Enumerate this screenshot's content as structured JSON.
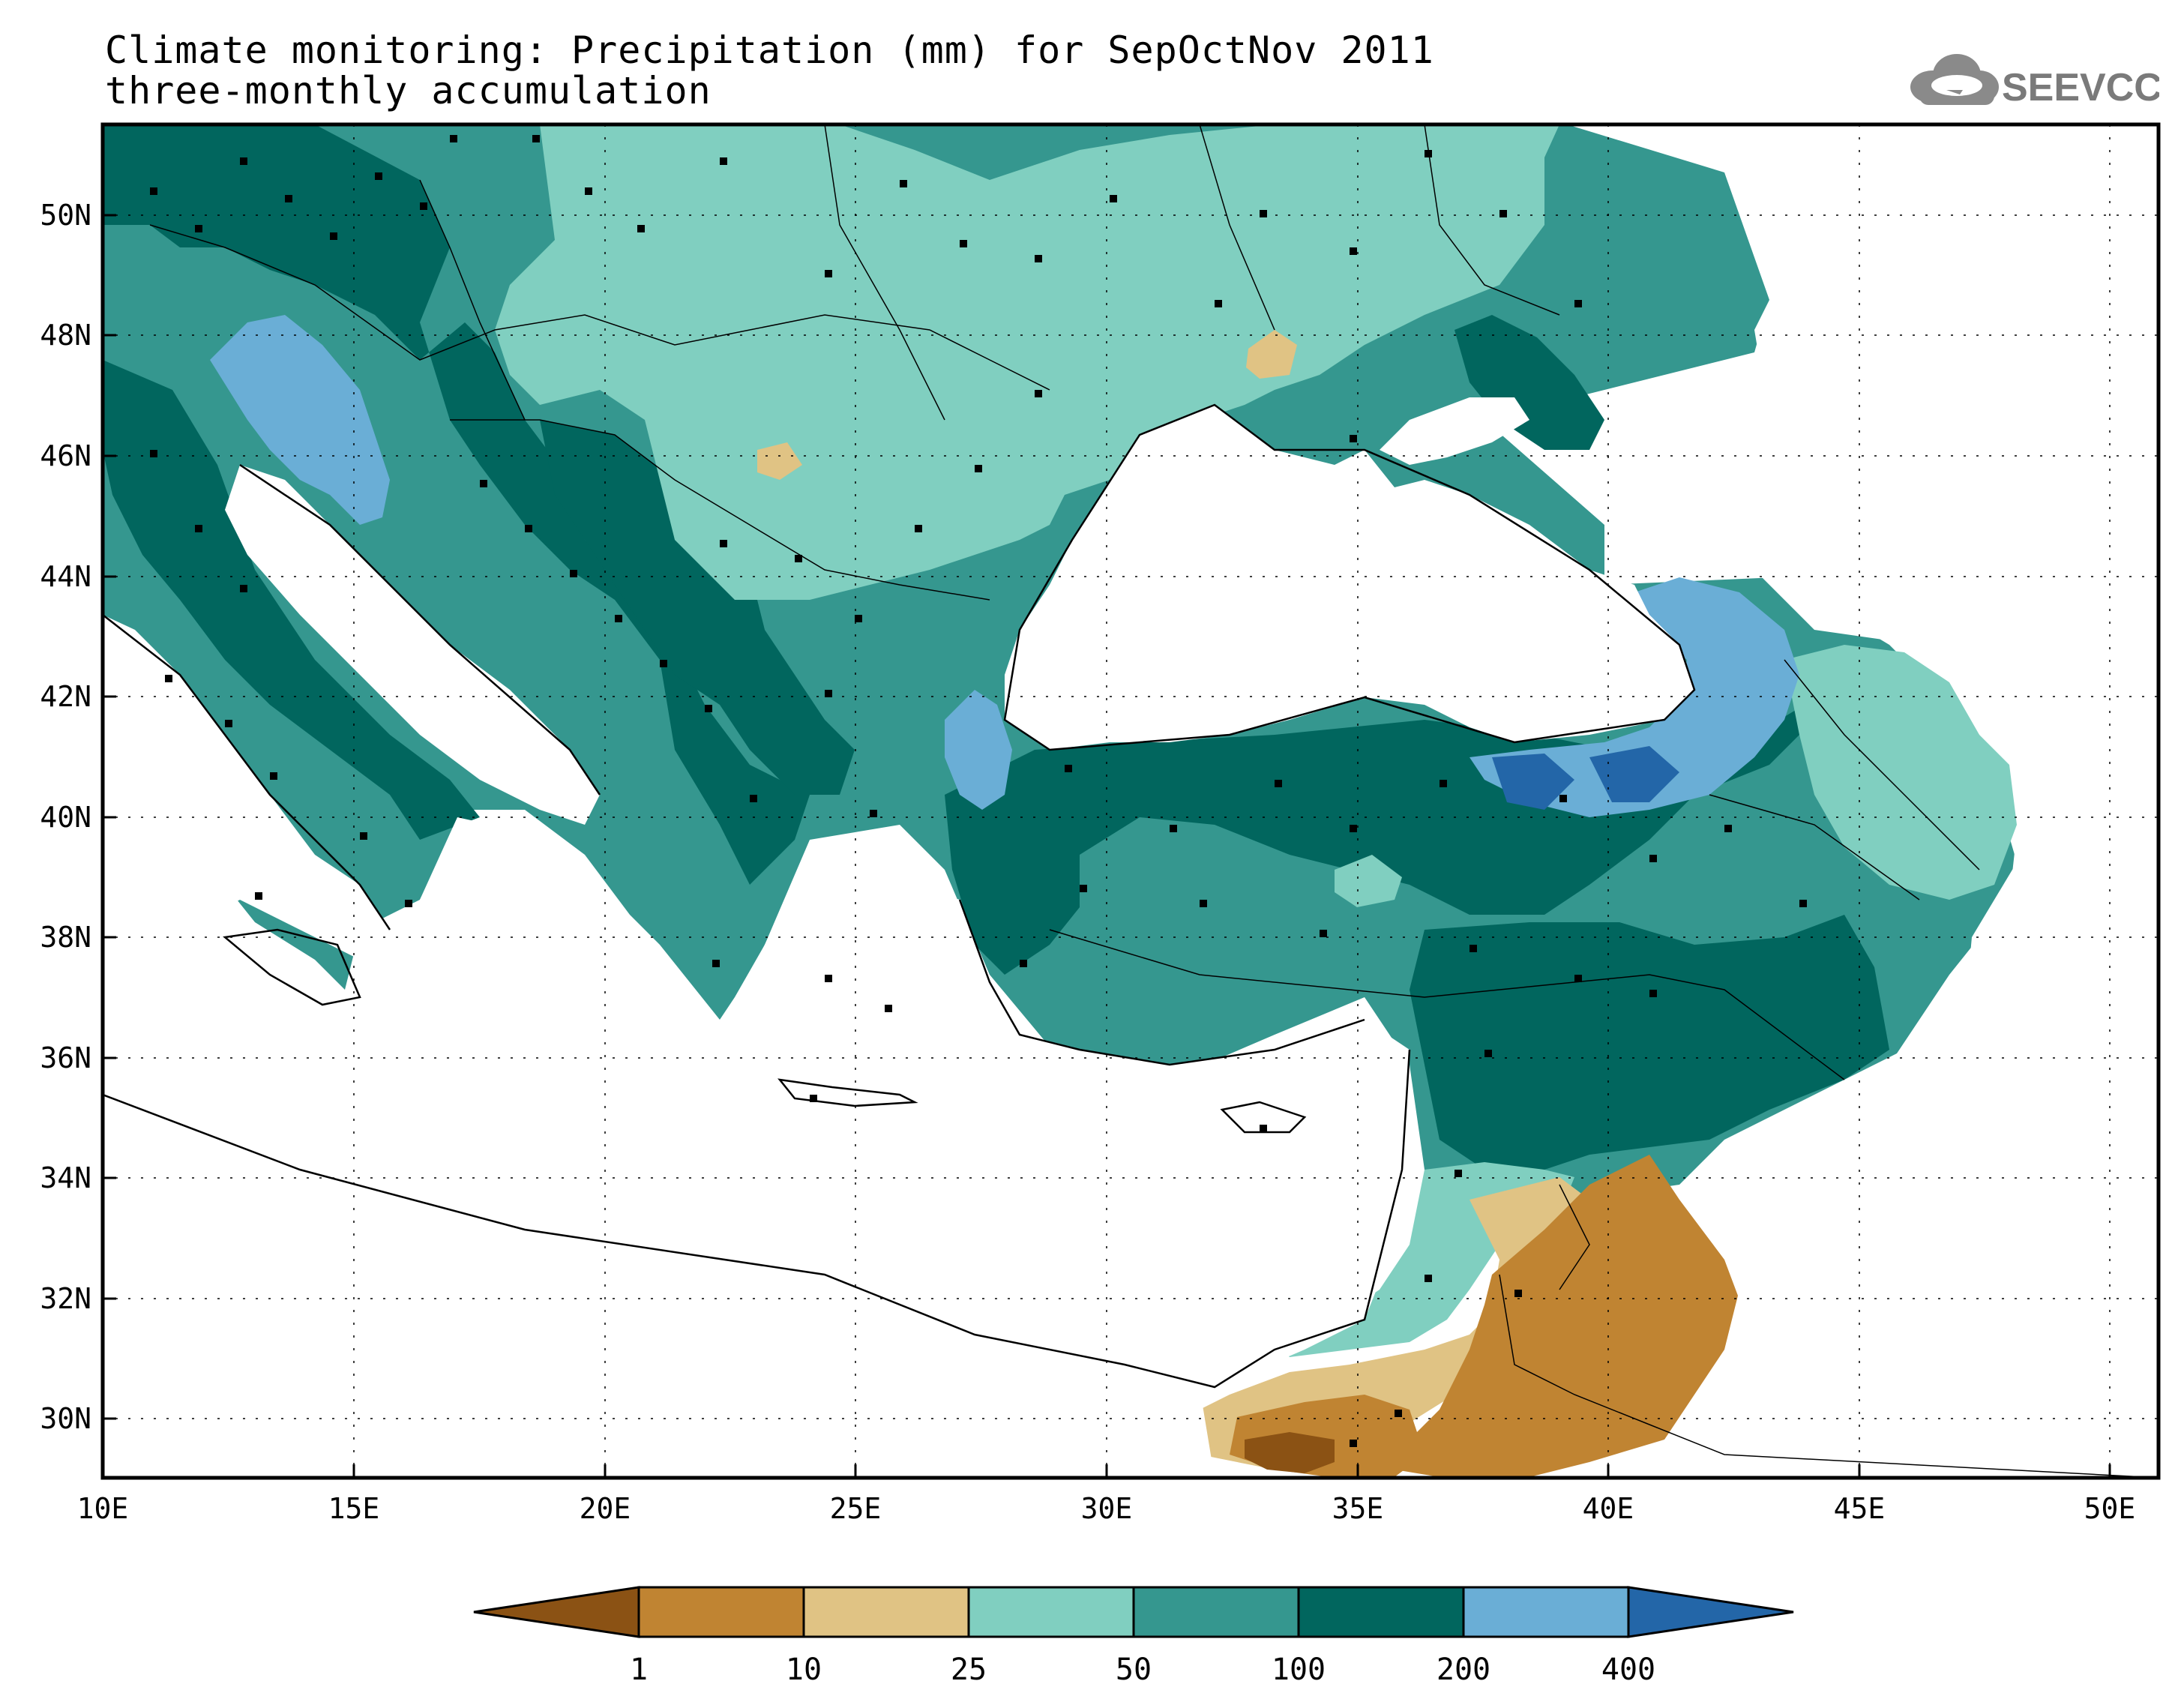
{
  "title": "Climate monitoring: Precipitation (mm) for SepOctNov 2011",
  "subtitle": "three-monthly accumulation",
  "logo_text": "SEEVCCC",
  "axes": {
    "lon_labels": [
      "10E",
      "15E",
      "20E",
      "25E",
      "30E",
      "35E",
      "40E",
      "45E",
      "50E"
    ],
    "lat_labels": [
      "50N",
      "48N",
      "46N",
      "44N",
      "42N",
      "40N",
      "38N",
      "36N",
      "34N",
      "32N",
      "30N"
    ]
  },
  "colorbar": {
    "labels": [
      "1",
      "10",
      "25",
      "50",
      "100",
      "200",
      "400"
    ],
    "colors": [
      "#8b5214",
      "#c08432",
      "#e0c384",
      "#80cfc0",
      "#35978f",
      "#01665e",
      "#6aaed6",
      "#2366a8"
    ]
  },
  "chart_data": {
    "type": "heatmap",
    "title": "Climate monitoring: Precipitation (mm) for SepOctNov 2011",
    "subtitle": "three-monthly accumulation",
    "variable": "Precipitation (mm)",
    "period": "SepOctNov 2011",
    "lon_range": [
      10,
      51
    ],
    "lat_range": [
      29,
      51.5
    ],
    "class_breaks": [
      1,
      10,
      25,
      50,
      100,
      200,
      400
    ],
    "grid": true
  }
}
